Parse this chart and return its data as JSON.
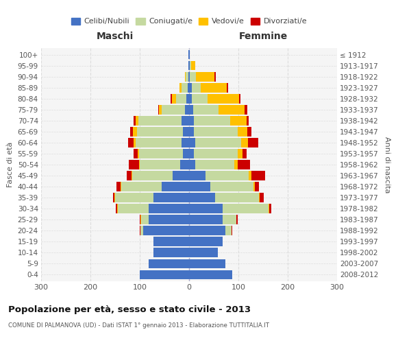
{
  "age_groups": [
    "100+",
    "95-99",
    "90-94",
    "85-89",
    "80-84",
    "75-79",
    "70-74",
    "65-69",
    "60-64",
    "55-59",
    "50-54",
    "45-49",
    "40-44",
    "35-39",
    "30-34",
    "25-29",
    "20-24",
    "15-19",
    "10-14",
    "5-9",
    "0-4"
  ],
  "birth_years": [
    "≤ 1912",
    "1913-1917",
    "1918-1922",
    "1923-1927",
    "1928-1932",
    "1933-1937",
    "1938-1942",
    "1943-1947",
    "1948-1952",
    "1953-1957",
    "1958-1962",
    "1963-1967",
    "1968-1972",
    "1973-1977",
    "1978-1982",
    "1983-1987",
    "1988-1992",
    "1993-1997",
    "1998-2002",
    "2003-2007",
    "2008-2012"
  ],
  "male_celibi": [
    1,
    1,
    2,
    3,
    5,
    8,
    15,
    13,
    15,
    13,
    18,
    33,
    55,
    72,
    82,
    82,
    93,
    72,
    72,
    82,
    100
  ],
  "male_coniugati": [
    0,
    0,
    5,
    12,
    22,
    48,
    88,
    93,
    93,
    88,
    82,
    82,
    82,
    78,
    63,
    15,
    5,
    0,
    0,
    0,
    0
  ],
  "male_vedovi": [
    0,
    0,
    2,
    5,
    8,
    5,
    5,
    8,
    5,
    3,
    2,
    2,
    2,
    1,
    1,
    1,
    1,
    0,
    0,
    0,
    0
  ],
  "male_divorziati": [
    0,
    0,
    0,
    0,
    2,
    2,
    5,
    5,
    10,
    8,
    20,
    10,
    8,
    3,
    3,
    2,
    1,
    0,
    0,
    0,
    0
  ],
  "female_nubili": [
    1,
    2,
    2,
    5,
    5,
    8,
    10,
    10,
    12,
    10,
    13,
    33,
    43,
    53,
    68,
    68,
    73,
    68,
    58,
    73,
    88
  ],
  "female_coniugate": [
    0,
    2,
    12,
    18,
    33,
    52,
    73,
    88,
    93,
    88,
    78,
    88,
    88,
    88,
    93,
    28,
    13,
    0,
    0,
    0,
    0
  ],
  "female_vedove": [
    1,
    8,
    38,
    53,
    63,
    53,
    33,
    20,
    15,
    10,
    8,
    5,
    3,
    2,
    1,
    0,
    0,
    0,
    0,
    0,
    0
  ],
  "female_divorziate": [
    0,
    1,
    2,
    3,
    3,
    5,
    5,
    8,
    20,
    8,
    25,
    28,
    8,
    8,
    5,
    3,
    2,
    0,
    0,
    0,
    0
  ],
  "colors": {
    "celibi": "#4472c4",
    "coniugati": "#c5d9a0",
    "vedovi": "#ffc000",
    "divorziati": "#cc0000"
  },
  "title": "Popolazione per età, sesso e stato civile - 2013",
  "subtitle": "COMUNE DI PALMANOVA (UD) - Dati ISTAT 1° gennaio 2013 - Elaborazione TUTTITALIA.IT",
  "label_maschi": "Maschi",
  "label_femmine": "Femmine",
  "ylabel_left": "Fasce di età",
  "ylabel_right": "Anni di nascita",
  "xlim": 300,
  "bar_height": 0.85,
  "background_color": "#ffffff",
  "plot_bg_color": "#f5f5f5",
  "grid_color": "#dddddd"
}
